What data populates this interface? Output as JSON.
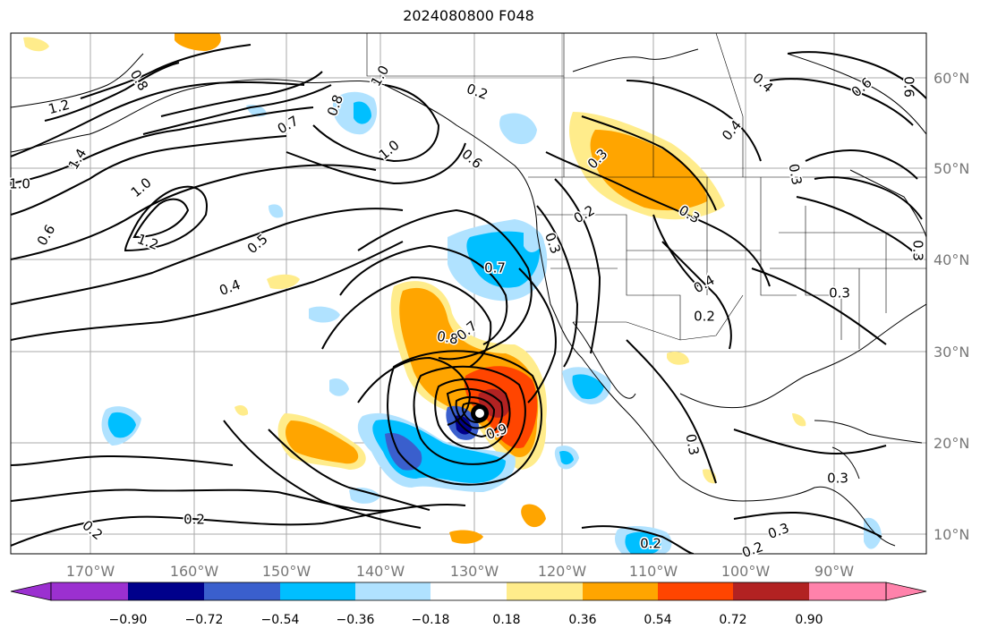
{
  "title": "2024080800 F048",
  "colors": {
    "neg_090_plus": "#9b30d0",
    "neg_090": "#00008b",
    "neg_072": "#3a5fcd",
    "neg_054": "#00bfff",
    "neg_036": "#b0e2ff",
    "neutral": "#ffffff",
    "pos_018": "#ffec8b",
    "pos_036": "#ffa500",
    "pos_054": "#ff4500",
    "pos_072": "#b22222",
    "pos_090_plus": "#ff82ab"
  },
  "longitude_labels": [
    "170°W",
    "160°W",
    "150°W",
    "140°W",
    "130°W",
    "120°W",
    "110°W",
    "100°W",
    "90°W"
  ],
  "latitude_labels": [
    "60°N",
    "50°N",
    "40°N",
    "30°N",
    "20°N",
    "10°N"
  ],
  "colorbar_ticks": [
    "−0.90",
    "−0.72",
    "−0.54",
    "−0.36",
    "−0.18",
    "0.18",
    "0.36",
    "0.54",
    "0.72",
    "0.90"
  ],
  "contour_labels": [
    "1.2",
    "0.8",
    "0.7",
    "0.8",
    "1.0",
    "0.2",
    "0.6",
    "0.3",
    "0.4",
    "0.6",
    "0.6",
    "1.0",
    "1.0",
    "1.2",
    "0.6",
    "0.5",
    "0.4",
    "0.7",
    "0.3",
    "0.2",
    "0.8",
    "0.7",
    "0.4",
    "0.2",
    "0.3",
    "0.9",
    "0.3",
    "0.2",
    "0.2",
    "0.2",
    "0.3",
    "0.2",
    "0.3",
    "1.4",
    "1.0",
    "0.4",
    "0.3",
    "0.3",
    "0.3"
  ]
}
